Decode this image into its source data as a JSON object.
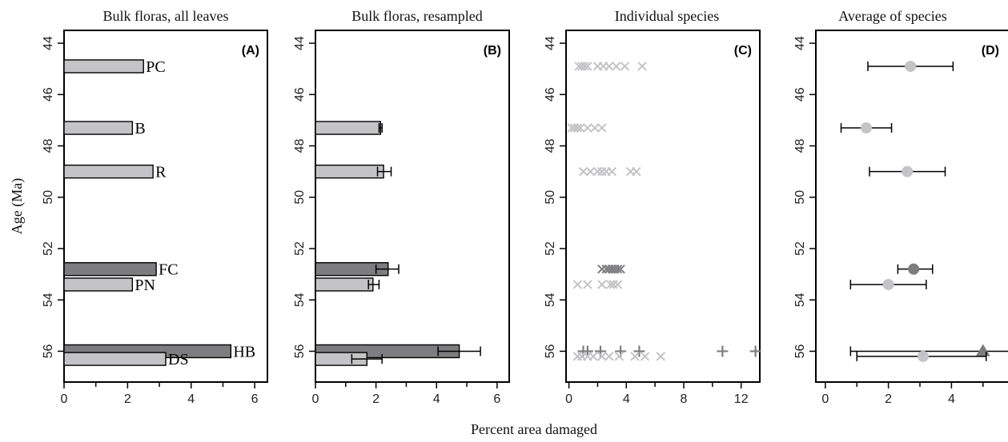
{
  "figure": {
    "ylabel": "Age (Ma)",
    "xlabel": "Percent area damaged"
  },
  "colors": {
    "light": "#c4c4c6",
    "dark": "#7d7d7f",
    "axis": "#000000"
  },
  "chart_data": [
    {
      "panel": "(A)",
      "title": "Bulk floras, all leaves",
      "type": "bar",
      "orientation": "horizontal",
      "xlim": [
        0,
        6.4
      ],
      "ylim": [
        43.5,
        57.2
      ],
      "xticks": [
        0,
        2,
        4,
        6
      ],
      "xminor": [
        1,
        3,
        5
      ],
      "yticks": [
        44,
        46,
        48,
        50,
        52,
        54,
        56
      ],
      "bars": [
        {
          "site": "PC",
          "age": 44.9,
          "value": 2.5,
          "shade": "light"
        },
        {
          "site": "B",
          "age": 47.3,
          "value": 2.15,
          "shade": "light"
        },
        {
          "site": "R",
          "age": 49.0,
          "value": 2.8,
          "shade": "light"
        },
        {
          "site": "FC",
          "age": 52.8,
          "value": 2.9,
          "shade": "dark"
        },
        {
          "site": "PN",
          "age": 53.4,
          "value": 2.15,
          "shade": "light"
        },
        {
          "site": "HB",
          "age": 56.0,
          "value": 5.25,
          "shade": "dark"
        },
        {
          "site": "DS",
          "age": 56.3,
          "value": 3.2,
          "shade": "light"
        }
      ]
    },
    {
      "panel": "(B)",
      "title": "Bulk floras, resampled",
      "type": "bar",
      "orientation": "horizontal",
      "xlim": [
        0,
        6.4
      ],
      "ylim": [
        43.5,
        57.2
      ],
      "xticks": [
        0,
        2,
        4,
        6
      ],
      "xminor": [
        1,
        3,
        5
      ],
      "yticks": [
        44,
        46,
        48,
        50,
        52,
        54,
        56
      ],
      "bars": [
        {
          "age": 47.3,
          "value": 2.15,
          "err": [
            2.1,
            2.2
          ],
          "shade": "light"
        },
        {
          "age": 49.0,
          "value": 2.25,
          "err": [
            2.05,
            2.5
          ],
          "shade": "light"
        },
        {
          "age": 52.8,
          "value": 2.4,
          "err": [
            2.0,
            2.75
          ],
          "shade": "dark"
        },
        {
          "age": 53.4,
          "value": 1.9,
          "err": [
            1.75,
            2.1
          ],
          "shade": "light"
        },
        {
          "age": 56.0,
          "value": 4.75,
          "err": [
            4.05,
            5.45
          ],
          "shade": "dark"
        },
        {
          "age": 56.3,
          "value": 1.7,
          "err": [
            1.2,
            2.2
          ],
          "shade": "light"
        }
      ]
    },
    {
      "panel": "(C)",
      "title": "Individual species",
      "type": "scatter",
      "xlim": [
        -0.2,
        13.3
      ],
      "ylim": [
        43.5,
        57.2
      ],
      "xticks": [
        0,
        4,
        8,
        12
      ],
      "xminor": [
        2,
        6,
        10
      ],
      "yticks": [
        44,
        46,
        48,
        50,
        52,
        54,
        56
      ],
      "series": [
        {
          "marker": "x",
          "shade": "light",
          "age": 44.9,
          "x": [
            0.7,
            0.9,
            1.1,
            1.3,
            2.0,
            2.4,
            2.8,
            3.3,
            3.9,
            5.1
          ]
        },
        {
          "marker": "x",
          "shade": "light",
          "age": 47.3,
          "x": [
            0.2,
            0.4,
            0.6,
            0.8,
            1.3,
            1.8,
            2.3
          ]
        },
        {
          "marker": "x",
          "shade": "light",
          "age": 49.0,
          "x": [
            1.0,
            1.5,
            2.0,
            2.3,
            2.6,
            3.0,
            4.3,
            4.7
          ]
        },
        {
          "marker": "x",
          "shade": "dark",
          "age": 52.8,
          "x": [
            2.3,
            2.6,
            2.8,
            3.0,
            3.2,
            3.4,
            3.6
          ]
        },
        {
          "marker": "x",
          "shade": "light",
          "age": 53.4,
          "x": [
            0.6,
            1.3,
            2.3,
            2.9,
            3.1,
            3.4
          ]
        },
        {
          "marker": "+",
          "shade": "dark",
          "age": 56.0,
          "x": [
            1.0,
            1.3,
            2.2,
            3.6,
            4.9,
            10.7,
            13.0
          ]
        },
        {
          "marker": "x",
          "shade": "light",
          "age": 56.2,
          "x": [
            0.6,
            0.9,
            1.3,
            1.7,
            2.3,
            2.8,
            3.5,
            4.6,
            5.3,
            6.4
          ]
        }
      ]
    },
    {
      "panel": "(D)",
      "title": "Average of species",
      "type": "scatter",
      "xlim": [
        -0.3,
        6.3
      ],
      "ylim": [
        43.5,
        57.2
      ],
      "xticks": [
        0,
        2,
        4,
        6
      ],
      "xminor": [
        1,
        3,
        5
      ],
      "yticks": [
        44,
        46,
        48,
        50,
        52,
        54,
        56
      ],
      "points": [
        {
          "age": 44.9,
          "x": 2.7,
          "err": [
            1.35,
            4.05
          ],
          "marker": "circle",
          "shade": "light"
        },
        {
          "age": 47.3,
          "x": 1.3,
          "err": [
            0.5,
            2.1
          ],
          "marker": "circle",
          "shade": "light"
        },
        {
          "age": 49.0,
          "x": 2.6,
          "err": [
            1.4,
            3.8
          ],
          "marker": "circle",
          "shade": "light"
        },
        {
          "age": 52.8,
          "x": 2.8,
          "err": [
            2.3,
            3.4
          ],
          "marker": "circle",
          "shade": "dark"
        },
        {
          "age": 53.4,
          "x": 2.0,
          "err": [
            0.8,
            3.2
          ],
          "marker": "circle",
          "shade": "light"
        },
        {
          "age": 56.0,
          "x": 5.0,
          "err": [
            0.8,
            6.3
          ],
          "marker": "triangle",
          "shade": "dark"
        },
        {
          "age": 56.2,
          "x": 3.1,
          "err": [
            1.0,
            5.1
          ],
          "marker": "circle",
          "shade": "light"
        }
      ]
    }
  ]
}
